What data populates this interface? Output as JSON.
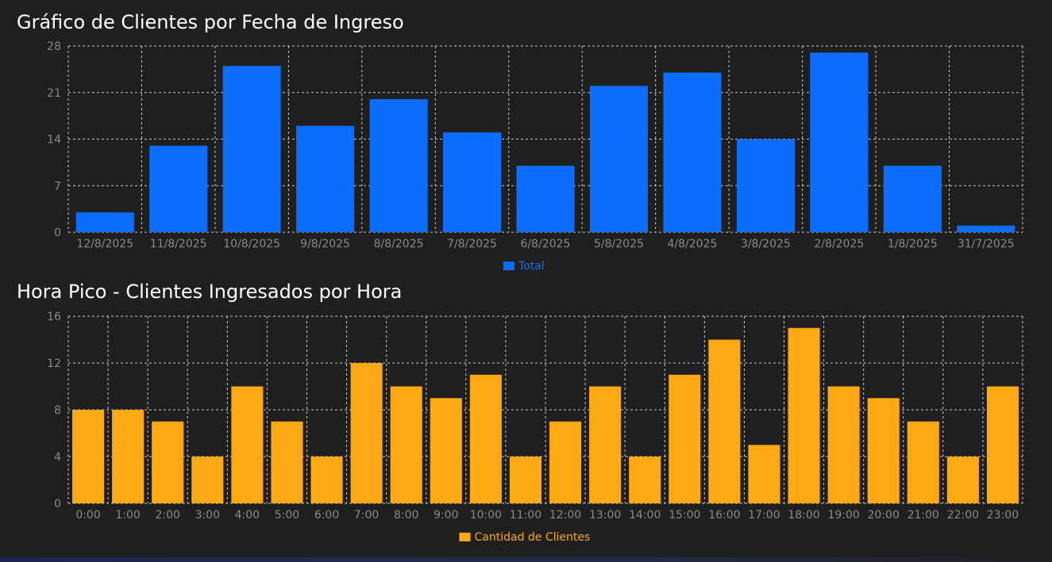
{
  "chart_data": [
    {
      "type": "bar",
      "title": "Gráfico de Clientes por Fecha de Ingreso",
      "categories": [
        "12/8/2025",
        "11/8/2025",
        "10/8/2025",
        "9/8/2025",
        "8/8/2025",
        "7/8/2025",
        "6/8/2025",
        "5/8/2025",
        "4/8/2025",
        "3/8/2025",
        "2/8/2025",
        "1/8/2025",
        "31/7/2025"
      ],
      "series": [
        {
          "name": "Total",
          "values": [
            3,
            13,
            25,
            16,
            20,
            15,
            10,
            22,
            24,
            14,
            27,
            10,
            1
          ],
          "color": "#0d6efd"
        }
      ],
      "ylim": [
        0,
        28
      ],
      "yticks": [
        0,
        7,
        14,
        21,
        28
      ],
      "grid": true,
      "legend": "bottom-center",
      "xlabel": "",
      "ylabel": ""
    },
    {
      "type": "bar",
      "title": "Hora Pico - Clientes Ingresados por Hora",
      "categories": [
        "0:00",
        "1:00",
        "2:00",
        "3:00",
        "4:00",
        "5:00",
        "6:00",
        "7:00",
        "8:00",
        "9:00",
        "10:00",
        "11:00",
        "12:00",
        "13:00",
        "14:00",
        "15:00",
        "16:00",
        "17:00",
        "18:00",
        "19:00",
        "20:00",
        "21:00",
        "22:00",
        "23:00"
      ],
      "series": [
        {
          "name": "Cantidad de Clientes",
          "values": [
            8,
            8,
            7,
            4,
            10,
            7,
            4,
            12,
            10,
            9,
            11,
            4,
            7,
            10,
            4,
            11,
            14,
            5,
            15,
            10,
            9,
            7,
            4,
            10
          ],
          "color": "#fda913"
        }
      ],
      "ylim": [
        0,
        16
      ],
      "yticks": [
        0,
        4,
        8,
        12,
        16
      ],
      "grid": true,
      "legend": "bottom-center",
      "xlabel": "",
      "ylabel": ""
    }
  ],
  "colors": {
    "background": "#1f1f1f",
    "grid": "#c8c8c8",
    "tick_label": "#8a8a8a",
    "title": "#ffffff"
  }
}
